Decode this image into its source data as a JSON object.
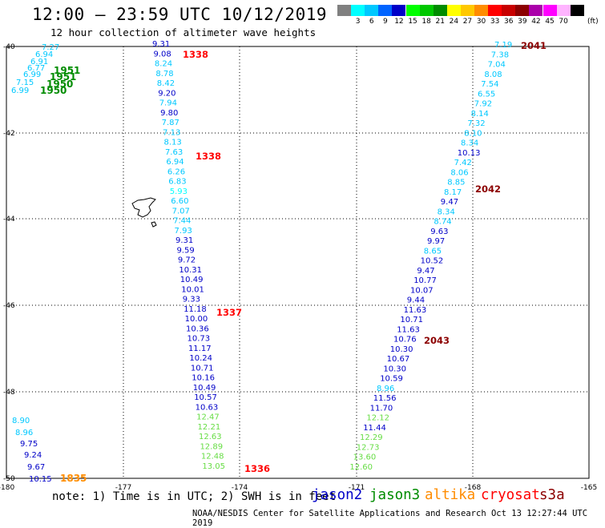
{
  "title": "12:00 — 23:59 UTC 10/12/2019",
  "subtitle": "12 hour collection of altimeter wave heights",
  "legend": {
    "unit": "(ft)",
    "items": [
      {
        "label": "",
        "color": "#808080"
      },
      {
        "label": "3",
        "color": "#00ffff"
      },
      {
        "label": "6",
        "color": "#00c8ff"
      },
      {
        "label": "9",
        "color": "#0064ff"
      },
      {
        "label": "12",
        "color": "#0000c8"
      },
      {
        "label": "15",
        "color": "#00ff00"
      },
      {
        "label": "18",
        "color": "#00c800"
      },
      {
        "label": "21",
        "color": "#008c00"
      },
      {
        "label": "24",
        "color": "#ffff00"
      },
      {
        "label": "27",
        "color": "#ffc800"
      },
      {
        "label": "30",
        "color": "#ff8c00"
      },
      {
        "label": "33",
        "color": "#ff0000"
      },
      {
        "label": "36",
        "color": "#c80000"
      },
      {
        "label": "39",
        "color": "#8c0000"
      },
      {
        "label": "42",
        "color": "#aa00aa"
      },
      {
        "label": "45",
        "color": "#ff00ff"
      },
      {
        "label": "70",
        "color": "#ffb4ff"
      },
      {
        "label": "",
        "color": "#000000"
      }
    ]
  },
  "axes": {
    "lon_labels": [
      "-180",
      "-177",
      "-174",
      "-171",
      "-168",
      "-165"
    ],
    "lat_labels": [
      "-40",
      "-42",
      "-44",
      "-46",
      "-48",
      "-50"
    ]
  },
  "tracks": [
    {
      "name": "track-top-left",
      "values": [
        {
          "v": "7.27",
          "c": "#00c8ff"
        },
        {
          "v": "6.94",
          "c": "#00c8ff"
        },
        {
          "v": "6.91",
          "c": "#00c8ff"
        },
        {
          "v": "6.77",
          "c": "#00c8ff"
        },
        {
          "v": "6.99",
          "c": "#00c8ff"
        },
        {
          "v": "7.15",
          "c": "#00c8ff"
        },
        {
          "v": "6.99",
          "c": "#00c8ff"
        }
      ],
      "times": [
        {
          "t": "1951",
          "c": "#008c00"
        },
        {
          "t": "1951",
          "c": "#008c00"
        },
        {
          "t": "1950",
          "c": "#008c00"
        },
        {
          "t": "1950",
          "c": "#008c00"
        }
      ]
    },
    {
      "name": "track-center",
      "values": [
        {
          "v": "9.31",
          "c": "#0000c8"
        },
        {
          "v": "9.08",
          "c": "#0000c8"
        },
        {
          "v": "8.24",
          "c": "#00c8ff"
        },
        {
          "v": "8.78",
          "c": "#00c8ff"
        },
        {
          "v": "8.42",
          "c": "#00c8ff"
        },
        {
          "v": "9.20",
          "c": "#0000c8"
        },
        {
          "v": "7.94",
          "c": "#00c8ff"
        },
        {
          "v": "9.80",
          "c": "#0000c8"
        },
        {
          "v": "7.87",
          "c": "#00c8ff"
        },
        {
          "v": "7.13",
          "c": "#00c8ff"
        },
        {
          "v": "8.13",
          "c": "#00c8ff"
        },
        {
          "v": "7.63",
          "c": "#00c8ff"
        },
        {
          "v": "6.94",
          "c": "#00c8ff"
        },
        {
          "v": "6.26",
          "c": "#00c8ff"
        },
        {
          "v": "6.83",
          "c": "#00c8ff"
        },
        {
          "v": "5.93",
          "c": "#00ffff"
        },
        {
          "v": "6.60",
          "c": "#00c8ff"
        },
        {
          "v": "7.07",
          "c": "#00c8ff"
        },
        {
          "v": "7.44",
          "c": "#00c8ff"
        },
        {
          "v": "7.93",
          "c": "#00c8ff"
        },
        {
          "v": "9.31",
          "c": "#0000c8"
        },
        {
          "v": "9.59",
          "c": "#0000c8"
        },
        {
          "v": "9.72",
          "c": "#0000c8"
        },
        {
          "v": "10.31",
          "c": "#0000c8"
        },
        {
          "v": "10.49",
          "c": "#0000c8"
        },
        {
          "v": "10.01",
          "c": "#0000c8"
        },
        {
          "v": "9.33",
          "c": "#0000c8"
        },
        {
          "v": "11.18",
          "c": "#0000c8"
        },
        {
          "v": "10.00",
          "c": "#0000c8"
        },
        {
          "v": "10.36",
          "c": "#0000c8"
        },
        {
          "v": "10.73",
          "c": "#0000c8"
        },
        {
          "v": "11.17",
          "c": "#0000c8"
        },
        {
          "v": "10.24",
          "c": "#0000c8"
        },
        {
          "v": "10.71",
          "c": "#0000c8"
        },
        {
          "v": "10.16",
          "c": "#0000c8"
        },
        {
          "v": "10.49",
          "c": "#0000c8"
        },
        {
          "v": "10.57",
          "c": "#0000c8"
        },
        {
          "v": "10.63",
          "c": "#0000c8"
        },
        {
          "v": "12.47",
          "c": "#66dd44"
        },
        {
          "v": "12.21",
          "c": "#66dd44"
        },
        {
          "v": "12.63",
          "c": "#66dd44"
        },
        {
          "v": "12.89",
          "c": "#66dd44"
        },
        {
          "v": "12.48",
          "c": "#66dd44"
        },
        {
          "v": "13.05",
          "c": "#66dd44"
        }
      ],
      "times": [
        {
          "t": "1338",
          "c": "#ff0000"
        },
        {
          "t": "1338",
          "c": "#ff0000"
        },
        {
          "t": "1337",
          "c": "#ff0000"
        },
        {
          "t": "1336",
          "c": "#ff0000"
        }
      ]
    },
    {
      "name": "track-right",
      "values": [
        {
          "v": "7.19",
          "c": "#00c8ff"
        },
        {
          "v": "7.38",
          "c": "#00c8ff"
        },
        {
          "v": "7.04",
          "c": "#00c8ff"
        },
        {
          "v": "8.08",
          "c": "#00c8ff"
        },
        {
          "v": "7.54",
          "c": "#00c8ff"
        },
        {
          "v": "6.55",
          "c": "#00c8ff"
        },
        {
          "v": "7.92",
          "c": "#00c8ff"
        },
        {
          "v": "8.14",
          "c": "#00c8ff"
        },
        {
          "v": "7.32",
          "c": "#00c8ff"
        },
        {
          "v": "8.10",
          "c": "#00c8ff"
        },
        {
          "v": "8.34",
          "c": "#00c8ff"
        },
        {
          "v": "10.13",
          "c": "#0000c8"
        },
        {
          "v": "7.42",
          "c": "#00c8ff"
        },
        {
          "v": "8.06",
          "c": "#00c8ff"
        },
        {
          "v": "8.85",
          "c": "#00c8ff"
        },
        {
          "v": "8.17",
          "c": "#00c8ff"
        },
        {
          "v": "9.47",
          "c": "#0000c8"
        },
        {
          "v": "8.34",
          "c": "#00c8ff"
        },
        {
          "v": "8.74",
          "c": "#00c8ff"
        },
        {
          "v": "9.63",
          "c": "#0000c8"
        },
        {
          "v": "9.97",
          "c": "#0000c8"
        },
        {
          "v": "8.65",
          "c": "#00c8ff"
        },
        {
          "v": "10.52",
          "c": "#0000c8"
        },
        {
          "v": "9.47",
          "c": "#0000c8"
        },
        {
          "v": "10.77",
          "c": "#0000c8"
        },
        {
          "v": "10.07",
          "c": "#0000c8"
        },
        {
          "v": "9.44",
          "c": "#0000c8"
        },
        {
          "v": "11.63",
          "c": "#0000c8"
        },
        {
          "v": "10.71",
          "c": "#0000c8"
        },
        {
          "v": "11.63",
          "c": "#0000c8"
        },
        {
          "v": "10.76",
          "c": "#0000c8"
        },
        {
          "v": "10.30",
          "c": "#0000c8"
        },
        {
          "v": "10.67",
          "c": "#0000c8"
        },
        {
          "v": "10.30",
          "c": "#0000c8"
        },
        {
          "v": "10.59",
          "c": "#0000c8"
        },
        {
          "v": "8.96",
          "c": "#00c8ff"
        },
        {
          "v": "11.56",
          "c": "#0000c8"
        },
        {
          "v": "11.70",
          "c": "#0000c8"
        },
        {
          "v": "12.12",
          "c": "#66dd44"
        },
        {
          "v": "11.44",
          "c": "#0000c8"
        },
        {
          "v": "12.29",
          "c": "#66dd44"
        },
        {
          "v": "12.73",
          "c": "#66dd44"
        },
        {
          "v": "13.60",
          "c": "#66dd44"
        },
        {
          "v": "12.60",
          "c": "#66dd44"
        }
      ],
      "times": [
        {
          "t": "2041",
          "c": "#8c0000"
        },
        {
          "t": "2042",
          "c": "#8c0000"
        },
        {
          "t": "2043",
          "c": "#8c0000"
        }
      ]
    },
    {
      "name": "track-bottom-left",
      "values": [
        {
          "v": "8.90",
          "c": "#00c8ff"
        },
        {
          "v": "8.96",
          "c": "#00c8ff"
        },
        {
          "v": "9.75",
          "c": "#0000c8"
        },
        {
          "v": "9.24",
          "c": "#0000c8"
        },
        {
          "v": "9.67",
          "c": "#0000c8"
        },
        {
          "v": "10.15",
          "c": "#0000c8"
        }
      ],
      "times": [
        {
          "t": "1835",
          "c": "#ff8c00"
        }
      ]
    }
  ],
  "satellites": [
    {
      "name": "jason2",
      "color": "#0000c8"
    },
    {
      "name": "jason3",
      "color": "#008c00"
    },
    {
      "name": "altika",
      "color": "#ff8c00"
    },
    {
      "name": "cryosat",
      "color": "#ff0000"
    },
    {
      "name": "s3a",
      "color": "#8c0000"
    }
  ],
  "note": "note: 1) Time is in UTC; 2) SWH is in feet",
  "credit": "NOAA/NESDIS Center for Satellite Applications and Research   Oct 13 12:27:44 UTC 2019"
}
